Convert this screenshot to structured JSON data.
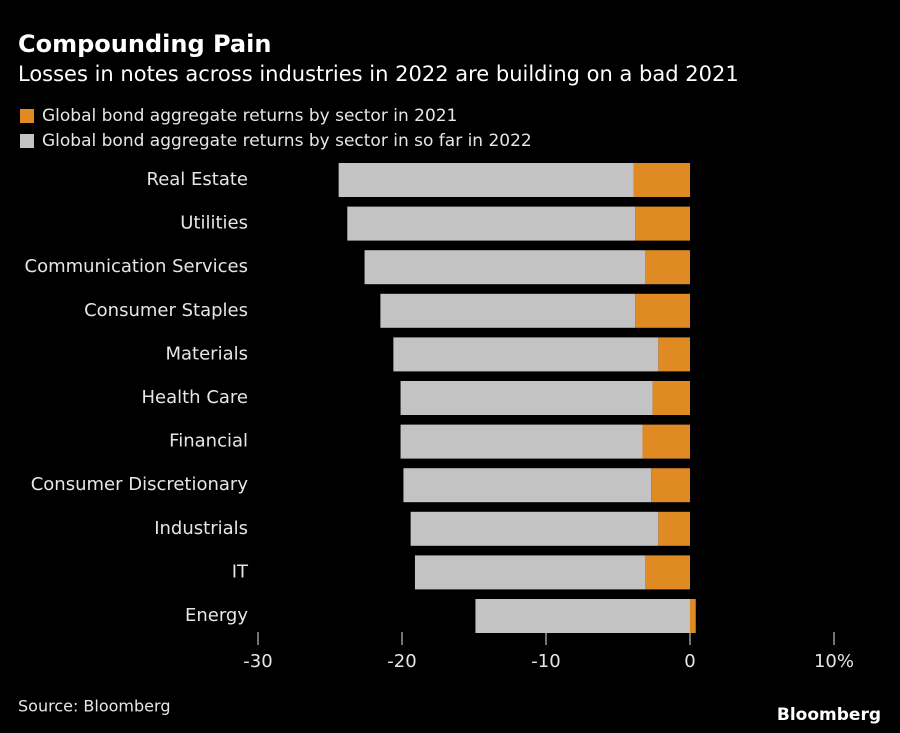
{
  "chart_data": {
    "type": "stacked-barh",
    "title": "Compounding Pain",
    "subtitle": "Losses in notes across industries in 2022 are building on a bad 2021",
    "categories": [
      "Real Estate",
      "Utilities",
      "Communication Services",
      "Consumer Staples",
      "Materials",
      "Health Care",
      "Financial",
      "Consumer Discretionary",
      "Industrials",
      "IT",
      "Energy"
    ],
    "series": [
      {
        "name": "Global bond aggregate returns by sector in 2021",
        "color": "#e08a24",
        "values": [
          -3.9,
          -3.8,
          -3.1,
          -3.8,
          -2.2,
          -2.6,
          -3.3,
          -2.7,
          -2.2,
          -3.1,
          0.4
        ]
      },
      {
        "name": "Global bond aggregate returns by sector in so far in 2022",
        "color": "#c3c3c3",
        "values": [
          -20.5,
          -20.0,
          -19.5,
          -17.7,
          -18.4,
          -17.5,
          -16.8,
          -17.2,
          -17.2,
          -16.0,
          -14.9
        ]
      }
    ],
    "xlim": [
      -30,
      10
    ],
    "xticks": [
      -30,
      -20,
      -10,
      0,
      {
        "value": 10,
        "label": "10%"
      }
    ],
    "source": "Source: Bloomberg",
    "logo": "Bloomberg"
  }
}
